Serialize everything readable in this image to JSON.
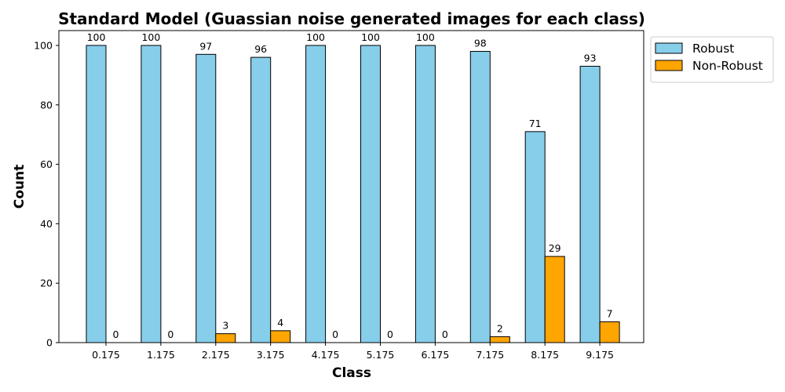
{
  "chart_data": {
    "type": "bar",
    "title": "Standard Model (Guassian noise generated images for each class)",
    "xlabel": "Class",
    "ylabel": "Count",
    "categories": [
      "0.175",
      "1.175",
      "2.175",
      "3.175",
      "4.175",
      "5.175",
      "6.175",
      "7.175",
      "8.175",
      "9.175"
    ],
    "series": [
      {
        "name": "Robust",
        "color": "#87CEEB",
        "values": [
          100,
          100,
          97,
          96,
          100,
          100,
          100,
          98,
          71,
          93
        ]
      },
      {
        "name": "Non-Robust",
        "color": "#FFA500",
        "values": [
          0,
          0,
          3,
          4,
          0,
          0,
          0,
          2,
          29,
          7
        ]
      }
    ],
    "ylim": [
      0,
      105
    ],
    "yticks": [
      0,
      20,
      40,
      60,
      80,
      100
    ],
    "grid": false,
    "legend_position": "outside-top-right",
    "data_labels": true
  }
}
